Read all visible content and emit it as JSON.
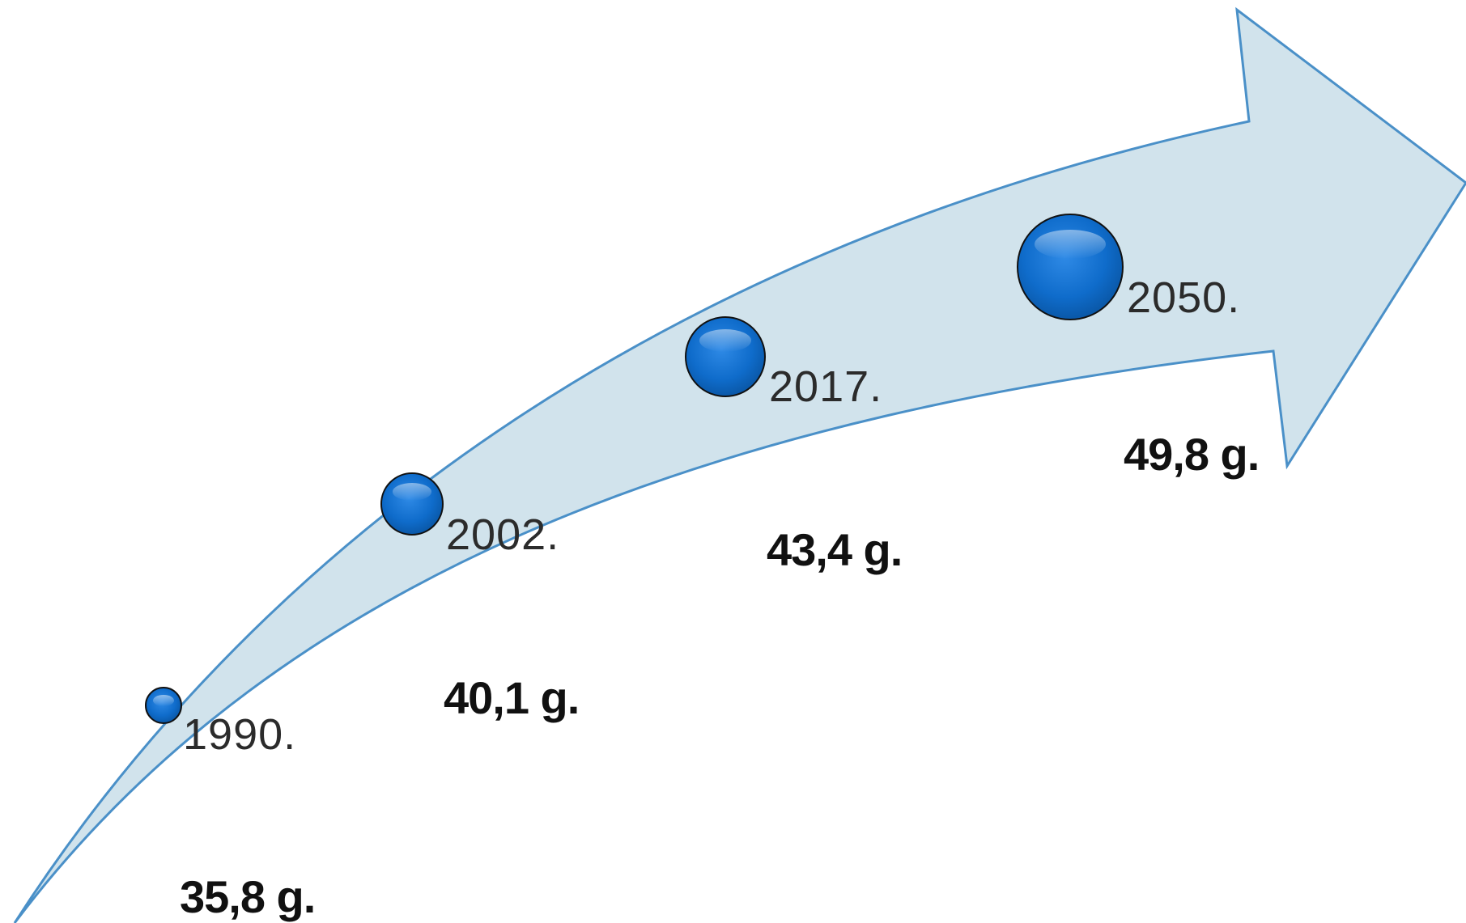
{
  "colors": {
    "arrow_fill": "#d1e3ec",
    "arrow_stroke": "#4a90c8",
    "bubble_fill": "#0f6ccb",
    "bubble_outline": "#111111"
  },
  "milestones": [
    {
      "year": "1990.",
      "value": "35,8 g."
    },
    {
      "year": "2002.",
      "value": "40,1 g."
    },
    {
      "year": "2017.",
      "value": "43,4 g."
    },
    {
      "year": "2050.",
      "value": "49,8 g."
    }
  ]
}
